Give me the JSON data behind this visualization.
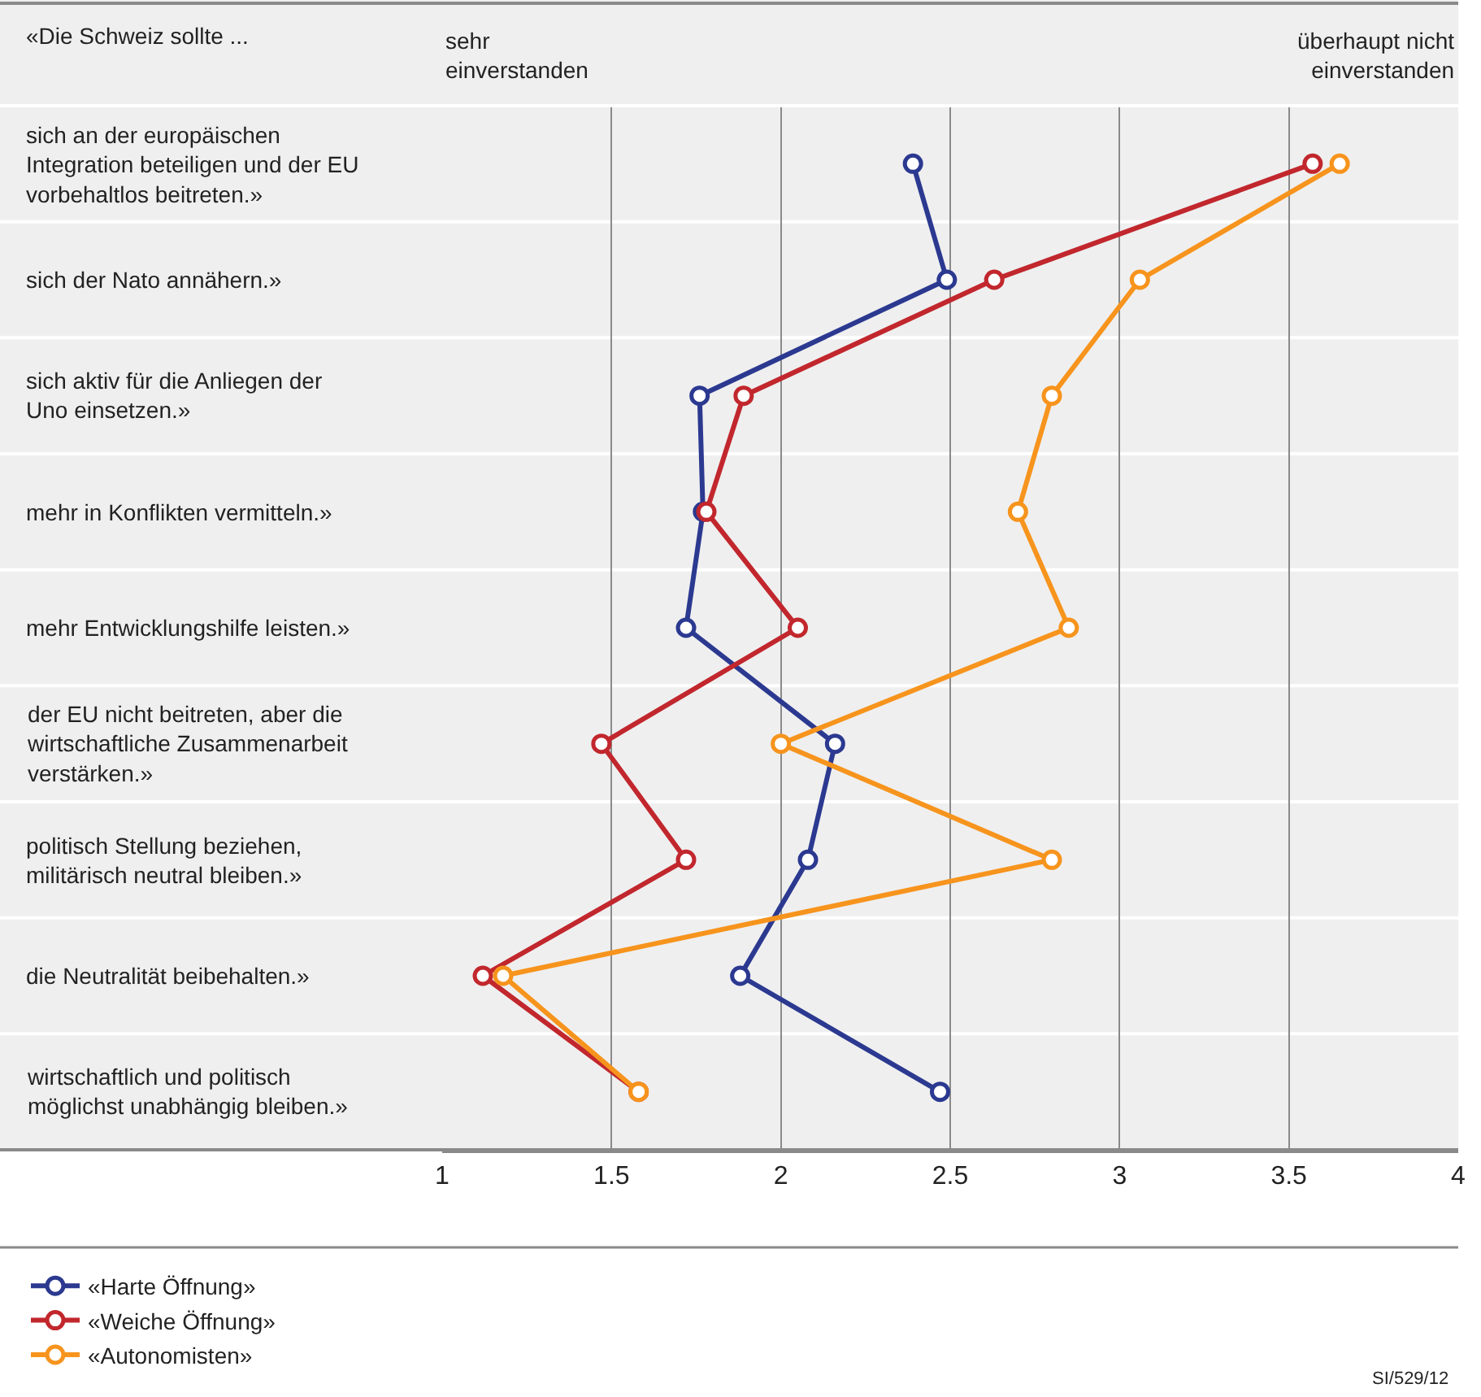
{
  "chart_data": {
    "type": "line",
    "orientation": "horizontal",
    "ylabel": "«Die Schweiz sollte ...",
    "categories": [
      "sich an der europäischen Integration beteiligen und der EU vorbehaltlos beitreten.»",
      "sich der Nato annähern.»",
      "sich aktiv für die Anliegen der Uno einsetzen.»",
      "mehr in Konflikten vermitteln.»",
      "mehr Entwicklungshilfe leisten.»",
      "der EU nicht beitreten, aber die wirtschaftliche Zusammenarbeit verstärken.»",
      "politisch Stellung beziehen, militärisch neutral bleiben.»",
      "die Neutralität beibehalten.»",
      "wirtschaftlich und politisch möglichst unabhängig bleiben.»"
    ],
    "series": [
      {
        "name": "«Harte Öffnung»",
        "color": "#2b3990",
        "values": [
          2.39,
          2.49,
          1.76,
          1.77,
          1.72,
          2.16,
          2.08,
          1.88,
          2.47
        ]
      },
      {
        "name": "«Weiche Öffnung»",
        "color": "#c1272d",
        "values": [
          3.57,
          2.63,
          1.89,
          1.78,
          2.05,
          1.47,
          1.72,
          1.12,
          1.58
        ]
      },
      {
        "name": "«Autonomisten»",
        "color": "#f7941d",
        "values": [
          3.65,
          3.06,
          2.8,
          2.7,
          2.85,
          2.0,
          2.8,
          1.18,
          1.58
        ]
      }
    ],
    "xlim": [
      1,
      4
    ],
    "xticks": [
      1,
      1.5,
      2,
      2.5,
      3,
      3.5,
      4
    ],
    "grid": true,
    "legend": "bottom left",
    "marker": "circle",
    "line_style": "solid",
    "annotations": [
      "sehr einverstanden",
      "überhaupt nicht einverstanden",
      "SI/529/12"
    ]
  }
}
